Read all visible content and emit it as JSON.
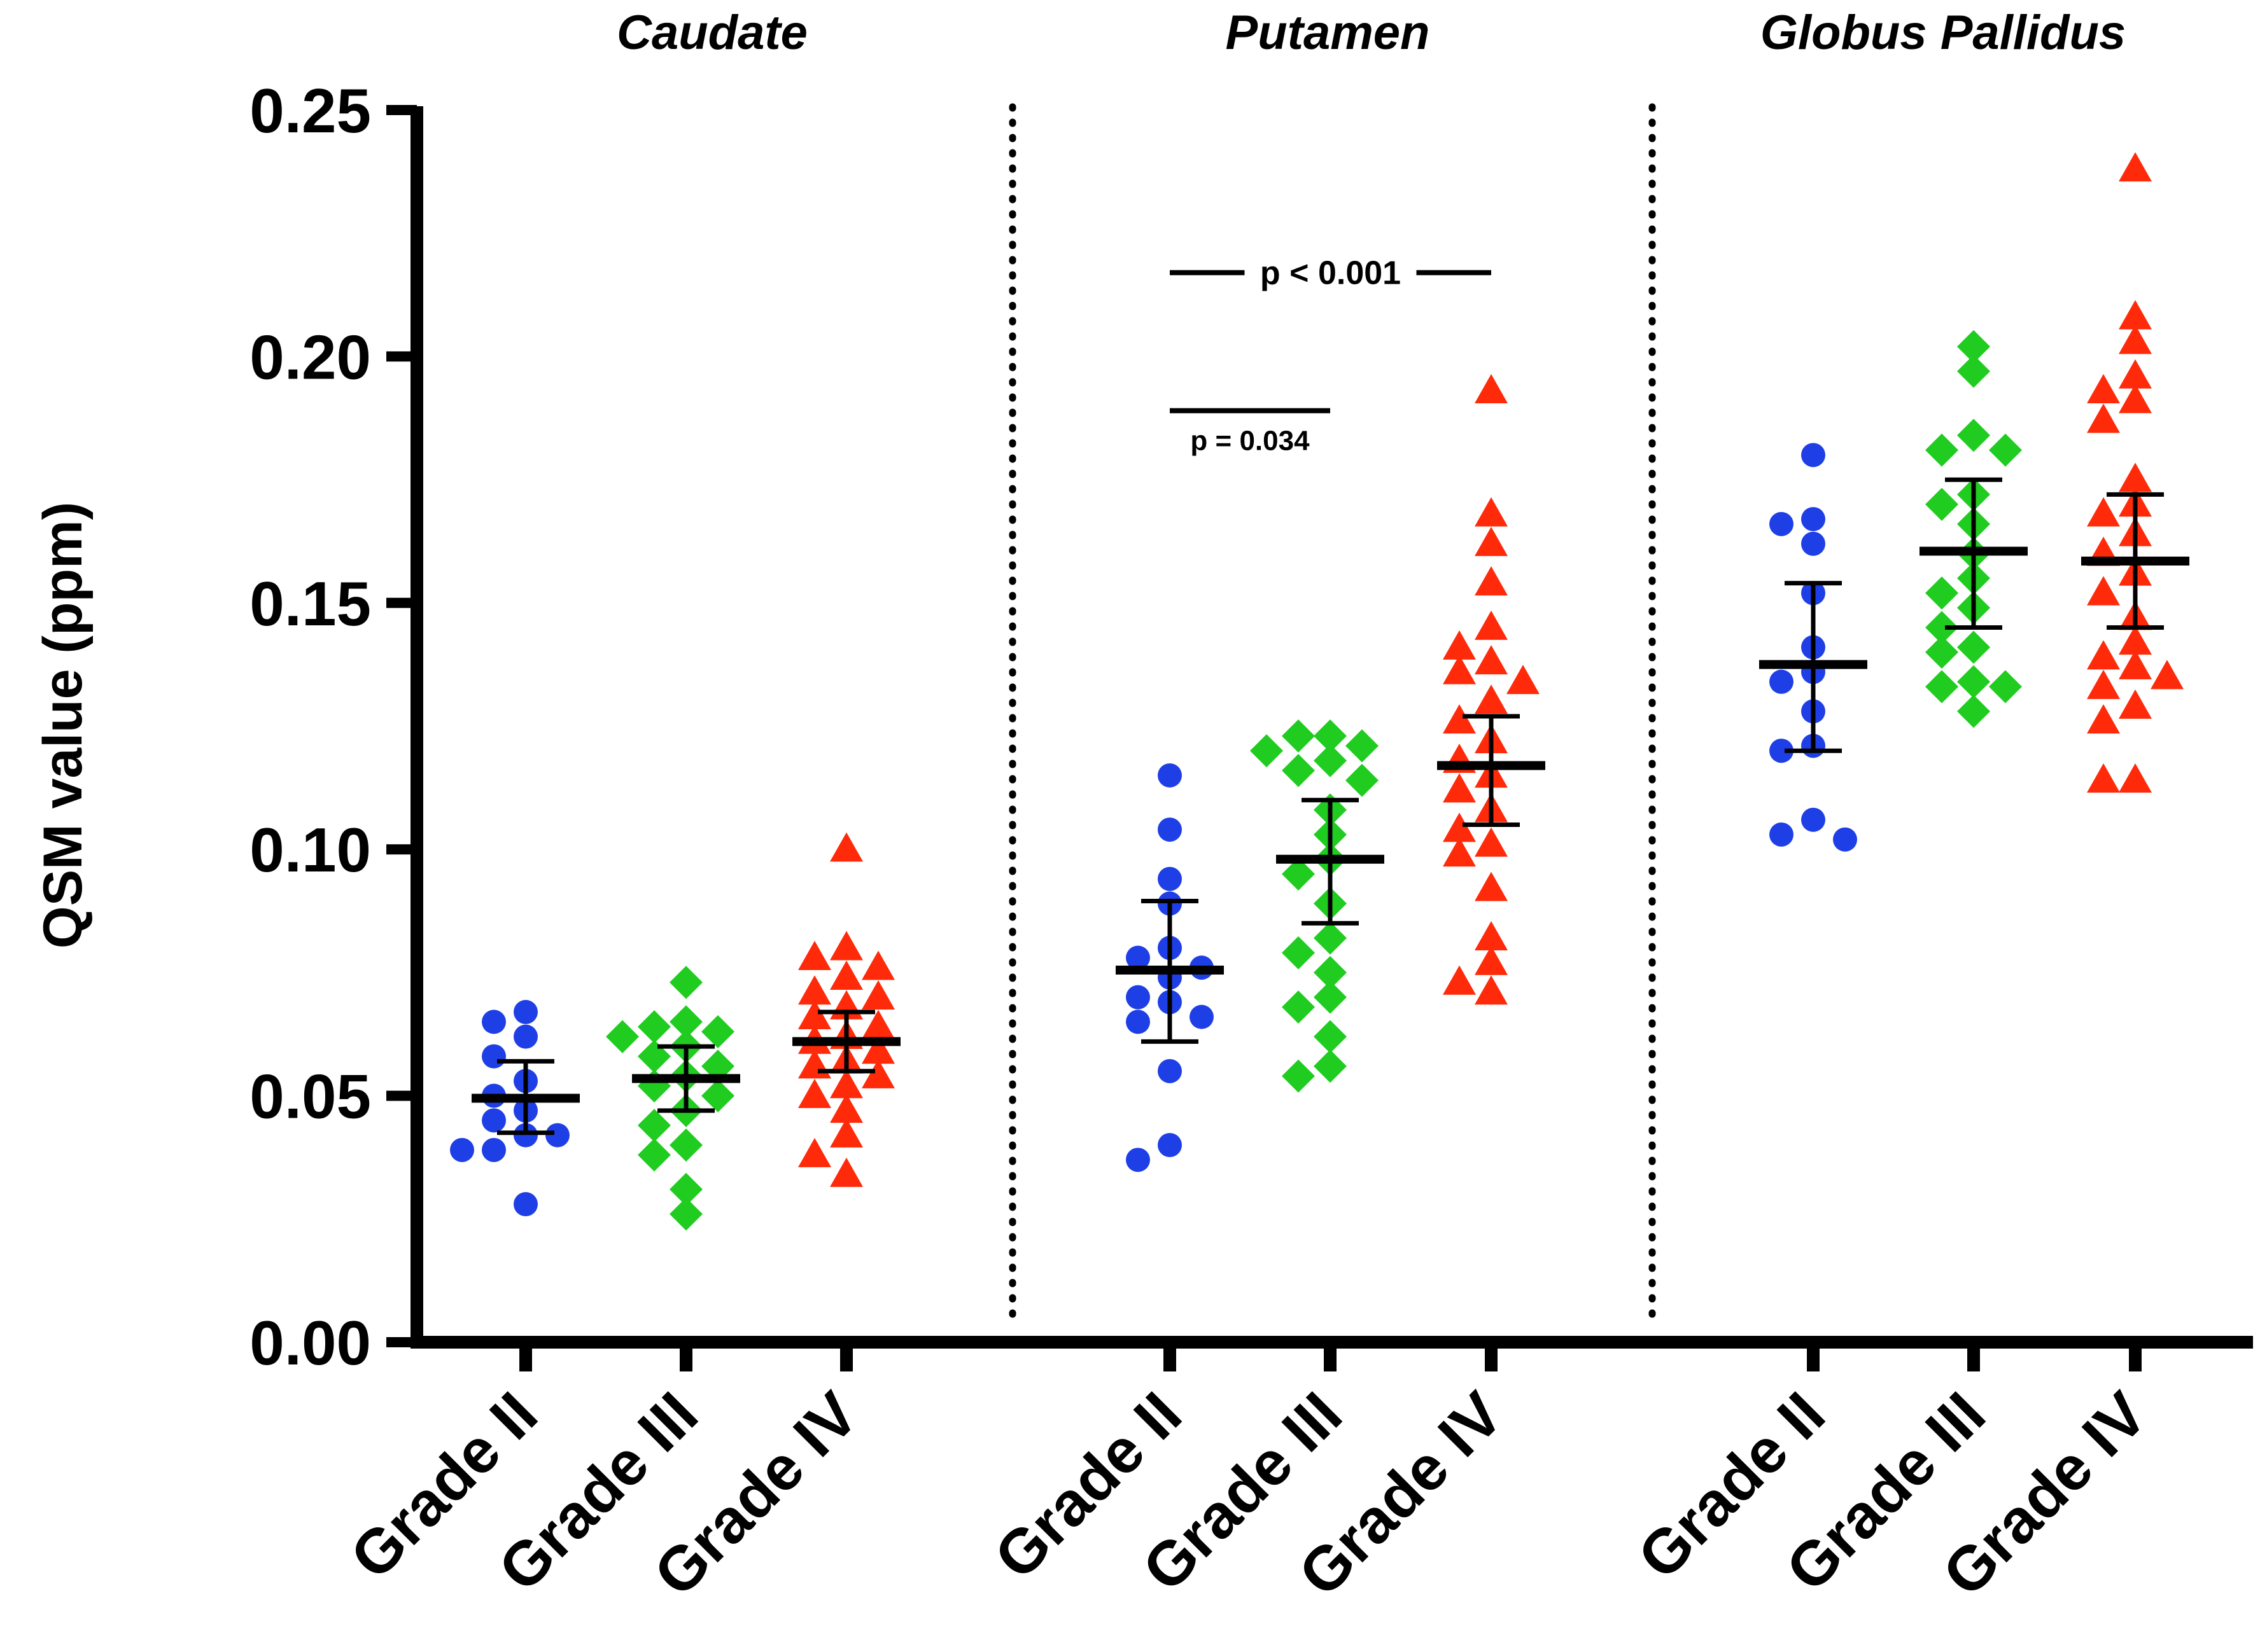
{
  "chart_data": {
    "type": "scatter",
    "ylabel": "QSM value (ppm)",
    "ylim": [
      0,
      0.25
    ],
    "yticks": [
      "0.00",
      "0.05",
      "0.10",
      "0.15",
      "0.20",
      "0.25"
    ],
    "groups": [
      "Caudate",
      "Putamen",
      "Globus Pallidus"
    ],
    "categories": [
      "Grade II",
      "Grade III",
      "Grade IV"
    ],
    "colors": {
      "Grade II": "#1f3fe6",
      "Grade III": "#1fcc1f",
      "Grade IV": "#ff2a0a"
    },
    "markers": {
      "Grade II": "circle",
      "Grade III": "diamond",
      "Grade IV": "triangle"
    },
    "series": [
      {
        "group": "Caudate",
        "grade": "Grade II",
        "mean": 0.0495,
        "err_low": 0.0425,
        "err_high": 0.057,
        "values": [
          0.065,
          0.067,
          0.062,
          0.058,
          0.053,
          0.05,
          0.047,
          0.045,
          0.042,
          0.042,
          0.039,
          0.039,
          0.028
        ]
      },
      {
        "group": "Caudate",
        "grade": "Grade III",
        "mean": 0.0535,
        "err_low": 0.047,
        "err_high": 0.06,
        "values": [
          0.073,
          0.065,
          0.064,
          0.063,
          0.062,
          0.06,
          0.058,
          0.056,
          0.054,
          0.052,
          0.05,
          0.047,
          0.044,
          0.04,
          0.038,
          0.031,
          0.026
        ]
      },
      {
        "group": "Caudate",
        "grade": "Grade IV",
        "mean": 0.061,
        "err_low": 0.055,
        "err_high": 0.067,
        "values": [
          0.1,
          0.08,
          0.078,
          0.076,
          0.074,
          0.071,
          0.07,
          0.068,
          0.066,
          0.064,
          0.062,
          0.061,
          0.059,
          0.057,
          0.056,
          0.054,
          0.052,
          0.05,
          0.047,
          0.042,
          0.038,
          0.034
        ]
      },
      {
        "group": "Putamen",
        "grade": "Grade II",
        "mean": 0.0755,
        "err_low": 0.061,
        "err_high": 0.0895,
        "values": [
          0.115,
          0.104,
          0.094,
          0.089,
          0.08,
          0.078,
          0.076,
          0.074,
          0.07,
          0.069,
          0.066,
          0.065,
          0.055,
          0.04,
          0.037
        ]
      },
      {
        "group": "Putamen",
        "grade": "Grade III",
        "mean": 0.098,
        "err_low": 0.085,
        "err_high": 0.11,
        "values": [
          0.123,
          0.123,
          0.121,
          0.12,
          0.118,
          0.116,
          0.114,
          0.108,
          0.103,
          0.098,
          0.095,
          0.089,
          0.082,
          0.079,
          0.075,
          0.07,
          0.068,
          0.062,
          0.056,
          0.054
        ]
      },
      {
        "group": "Putamen",
        "grade": "Grade IV",
        "mean": 0.117,
        "err_low": 0.105,
        "err_high": 0.127,
        "values": [
          0.193,
          0.168,
          0.162,
          0.154,
          0.145,
          0.141,
          0.138,
          0.136,
          0.134,
          0.13,
          0.126,
          0.122,
          0.118,
          0.115,
          0.112,
          0.108,
          0.104,
          0.101,
          0.099,
          0.092,
          0.082,
          0.077,
          0.073,
          0.071
        ]
      },
      {
        "group": "Globus Pallidus",
        "grade": "Grade II",
        "mean": 0.1375,
        "err_low": 0.12,
        "err_high": 0.154,
        "values": [
          0.18,
          0.167,
          0.166,
          0.162,
          0.152,
          0.141,
          0.136,
          0.134,
          0.128,
          0.121,
          0.12,
          0.106,
          0.103,
          0.102
        ]
      },
      {
        "group": "Globus Pallidus",
        "grade": "Grade III",
        "mean": 0.1605,
        "err_low": 0.145,
        "err_high": 0.175,
        "values": [
          0.202,
          0.197,
          0.184,
          0.181,
          0.181,
          0.172,
          0.17,
          0.166,
          0.16,
          0.155,
          0.152,
          0.149,
          0.145,
          0.141,
          0.14,
          0.134,
          0.133,
          0.133,
          0.128
        ]
      },
      {
        "group": "Globus Pallidus",
        "grade": "Grade IV",
        "mean": 0.1585,
        "err_low": 0.145,
        "err_high": 0.172,
        "values": [
          0.238,
          0.208,
          0.203,
          0.196,
          0.193,
          0.191,
          0.187,
          0.175,
          0.17,
          0.168,
          0.164,
          0.16,
          0.156,
          0.152,
          0.147,
          0.142,
          0.139,
          0.137,
          0.135,
          0.133,
          0.129,
          0.126,
          0.114,
          0.114
        ]
      }
    ],
    "annotations": [
      {
        "group": "Putamen",
        "from": "Grade II",
        "to": "Grade IV",
        "text": "p < 0.001",
        "y": 0.217
      },
      {
        "group": "Putamen",
        "from": "Grade II",
        "to": "Grade III",
        "text": "p = 0.034",
        "y": 0.189
      }
    ],
    "grid": false,
    "legend": "none"
  }
}
